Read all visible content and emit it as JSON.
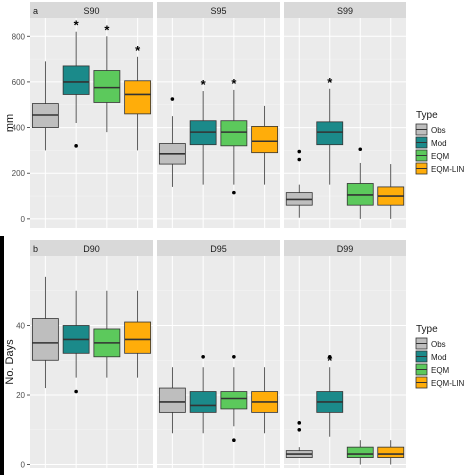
{
  "colors": {
    "panel_bg": "#ebebeb",
    "strip_bg": "#d9d9d9",
    "grid_major": "#ffffff",
    "grid_minor": "#f5f5f5",
    "text_dark": "#1a1a1a",
    "tick_text": "#4d4d4d",
    "box_stroke": "#333333",
    "left_bar": "#000000"
  },
  "chart_data": [
    {
      "type": "boxplot",
      "tag": "a",
      "ylabel": "mm",
      "ylim": [
        -40,
        880
      ],
      "yticks": [
        0,
        200,
        400,
        600,
        800
      ],
      "grid": true,
      "legend_position": "right",
      "legend": {
        "title": "Type",
        "entries": [
          {
            "label": "Obs",
            "color": "#bebebe"
          },
          {
            "label": "Mod",
            "color": "#1b8a8a"
          },
          {
            "label": "EQM",
            "color": "#5cc95c"
          },
          {
            "label": "EQM-LIN",
            "color": "#ffad0a"
          }
        ]
      },
      "panels": [
        {
          "title": "S90",
          "boxes": [
            {
              "series": "Obs",
              "min": 300,
              "q1": 400,
              "median": 455,
              "q3": 505,
              "max": 690,
              "outliers": [],
              "star": false
            },
            {
              "series": "Mod",
              "min": 420,
              "q1": 545,
              "median": 600,
              "q3": 670,
              "max": 820,
              "outliers": [
                320
              ],
              "star": true
            },
            {
              "series": "EQM",
              "min": 380,
              "q1": 510,
              "median": 575,
              "q3": 650,
              "max": 800,
              "outliers": [],
              "star": true
            },
            {
              "series": "EQM-LIN",
              "min": 300,
              "q1": 460,
              "median": 545,
              "q3": 605,
              "max": 710,
              "outliers": [],
              "star": true
            }
          ]
        },
        {
          "title": "S95",
          "boxes": [
            {
              "series": "Obs",
              "min": 140,
              "q1": 240,
              "median": 285,
              "q3": 330,
              "max": 450,
              "outliers": [
                525
              ],
              "star": false
            },
            {
              "series": "Mod",
              "min": 150,
              "q1": 325,
              "median": 380,
              "q3": 430,
              "max": 560,
              "outliers": [],
              "star": true
            },
            {
              "series": "EQM",
              "min": 150,
              "q1": 320,
              "median": 380,
              "q3": 430,
              "max": 565,
              "outliers": [
                115
              ],
              "star": true
            },
            {
              "series": "EQM-LIN",
              "min": 150,
              "q1": 290,
              "median": 340,
              "q3": 405,
              "max": 495,
              "outliers": [],
              "star": false
            }
          ]
        },
        {
          "title": "S99",
          "boxes": [
            {
              "series": "Obs",
              "min": 5,
              "q1": 60,
              "median": 85,
              "q3": 115,
              "max": 150,
              "outliers": [
                260,
                295
              ],
              "star": false
            },
            {
              "series": "Mod",
              "min": 150,
              "q1": 325,
              "median": 380,
              "q3": 425,
              "max": 570,
              "outliers": [],
              "star": true
            },
            {
              "series": "EQM",
              "min": 0,
              "q1": 60,
              "median": 105,
              "q3": 155,
              "max": 245,
              "outliers": [
                305
              ],
              "star": false
            },
            {
              "series": "EQM-LIN",
              "min": 0,
              "q1": 60,
              "median": 100,
              "q3": 140,
              "max": 240,
              "outliers": [],
              "star": false
            }
          ]
        }
      ]
    },
    {
      "type": "boxplot",
      "tag": "b",
      "ylabel": "No. Days",
      "ylim": [
        -1,
        60
      ],
      "yticks": [
        0,
        20,
        40
      ],
      "grid": true,
      "legend_position": "right",
      "legend": {
        "title": "Type",
        "entries": [
          {
            "label": "Obs",
            "color": "#bebebe"
          },
          {
            "label": "Mod",
            "color": "#1b8a8a"
          },
          {
            "label": "EQM",
            "color": "#5cc95c"
          },
          {
            "label": "EQM-LIN",
            "color": "#ffad0a"
          }
        ]
      },
      "panels": [
        {
          "title": "D90",
          "boxes": [
            {
              "series": "Obs",
              "min": 22,
              "q1": 30,
              "median": 35,
              "q3": 42,
              "max": 54,
              "outliers": [],
              "star": false
            },
            {
              "series": "Mod",
              "min": 25,
              "q1": 32,
              "median": 36,
              "q3": 40,
              "max": 50,
              "outliers": [
                21
              ],
              "star": false
            },
            {
              "series": "EQM",
              "min": 25,
              "q1": 31,
              "median": 35,
              "q3": 39,
              "max": 50,
              "outliers": [],
              "star": false
            },
            {
              "series": "EQM-LIN",
              "min": 25,
              "q1": 32,
              "median": 36,
              "q3": 41,
              "max": 50,
              "outliers": [],
              "star": false
            }
          ]
        },
        {
          "title": "D95",
          "boxes": [
            {
              "series": "Obs",
              "min": 9,
              "q1": 15,
              "median": 18,
              "q3": 22,
              "max": 28,
              "outliers": [],
              "star": false
            },
            {
              "series": "Mod",
              "min": 9,
              "q1": 15,
              "median": 17,
              "q3": 21,
              "max": 28,
              "outliers": [
                31
              ],
              "star": false
            },
            {
              "series": "EQM",
              "min": 11,
              "q1": 16,
              "median": 19,
              "q3": 21,
              "max": 28,
              "outliers": [
                7,
                31
              ],
              "star": false
            },
            {
              "series": "EQM-LIN",
              "min": 9,
              "q1": 15,
              "median": 18,
              "q3": 21,
              "max": 28,
              "outliers": [],
              "star": false
            }
          ]
        },
        {
          "title": "D99",
          "boxes": [
            {
              "series": "Obs",
              "min": 2,
              "q1": 2,
              "median": 3,
              "q3": 4,
              "max": 5,
              "outliers": [
                10,
                12
              ],
              "star": false
            },
            {
              "series": "Mod",
              "min": 8,
              "q1": 15,
              "median": 18,
              "q3": 21,
              "max": 28,
              "outliers": [
                31
              ],
              "star": true
            },
            {
              "series": "EQM",
              "min": 0,
              "q1": 2,
              "median": 3,
              "q3": 5,
              "max": 7,
              "outliers": [],
              "star": false
            },
            {
              "series": "EQM-LIN",
              "min": 0,
              "q1": 2,
              "median": 3,
              "q3": 5,
              "max": 7,
              "outliers": [],
              "star": false
            }
          ]
        }
      ]
    }
  ]
}
